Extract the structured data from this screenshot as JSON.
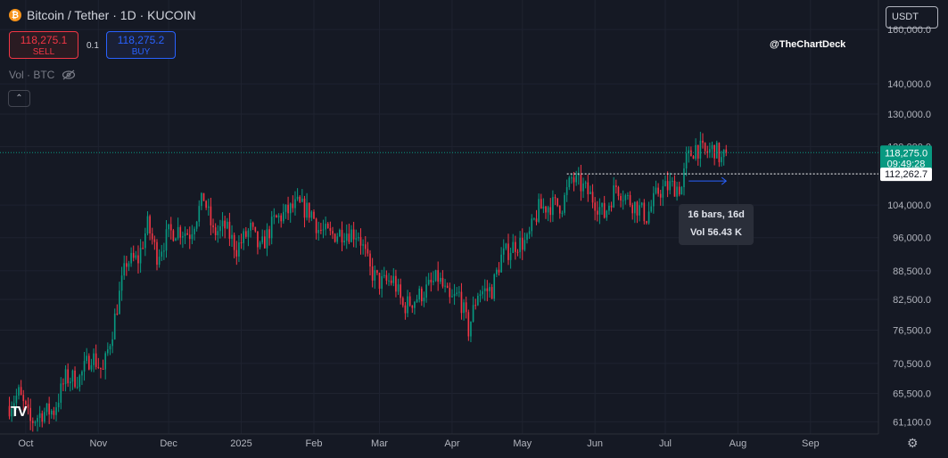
{
  "header": {
    "title": "Bitcoin / Tether · 1D · KUCOIN",
    "coin_icon": "bitcoin-icon",
    "sell_price": "118,275.1",
    "sell_label": "SELL",
    "buy_price": "118,275.2",
    "buy_label": "BUY",
    "quantity": "0.1",
    "volume_label": "Vol · BTC",
    "currency": "USDT"
  },
  "watermark": "@TheChartDeck",
  "logo": "TV",
  "colors": {
    "up": "#089981",
    "down": "#f23645",
    "background": "#151924",
    "grid": "#1f2330",
    "accent": "#2962ff"
  },
  "chart_data": {
    "type": "candlestick",
    "yscale": "log",
    "ylim": [
      59300,
      172000
    ],
    "xlim": [
      "2024-09-20",
      "2025-09-30"
    ],
    "grid": true,
    "y_ticks": [
      {
        "value": 160000,
        "label": "160,000.0"
      },
      {
        "value": 140000,
        "label": "140,000.0"
      },
      {
        "value": 130000,
        "label": "130,000.0"
      },
      {
        "value": 120000,
        "label": "120,000.0"
      },
      {
        "value": 104000,
        "label": "104,000.0"
      },
      {
        "value": 96000,
        "label": "96,000.0"
      },
      {
        "value": 88500,
        "label": "88,500.0"
      },
      {
        "value": 82500,
        "label": "82,500.0"
      },
      {
        "value": 76500,
        "label": "76,500.0"
      },
      {
        "value": 70500,
        "label": "70,500.0"
      },
      {
        "value": 65500,
        "label": "65,500.0"
      },
      {
        "value": 61100,
        "label": "61,100.0"
      }
    ],
    "x_ticks": [
      {
        "date": "2024-10-01",
        "label": "Oct"
      },
      {
        "date": "2024-11-01",
        "label": "Nov"
      },
      {
        "date": "2024-12-01",
        "label": "Dec"
      },
      {
        "date": "2025-01-01",
        "label": "2025"
      },
      {
        "date": "2025-02-01",
        "label": "Feb"
      },
      {
        "date": "2025-03-01",
        "label": "Mar"
      },
      {
        "date": "2025-04-01",
        "label": "Apr"
      },
      {
        "date": "2025-05-01",
        "label": "May"
      },
      {
        "date": "2025-06-01",
        "label": "Jun"
      },
      {
        "date": "2025-07-01",
        "label": "Jul"
      },
      {
        "date": "2025-08-01",
        "label": "Aug"
      },
      {
        "date": "2025-09-01",
        "label": "Sep"
      }
    ],
    "closes": [
      {
        "date": "2024-09-24",
        "close": 63500
      },
      {
        "date": "2024-09-28",
        "close": 65500
      },
      {
        "date": "2024-10-03",
        "close": 61000
      },
      {
        "date": "2024-10-08",
        "close": 62500
      },
      {
        "date": "2024-10-13",
        "close": 62800
      },
      {
        "date": "2024-10-18",
        "close": 68000
      },
      {
        "date": "2024-10-24",
        "close": 68000
      },
      {
        "date": "2024-10-29",
        "close": 72000
      },
      {
        "date": "2024-11-03",
        "close": 69000
      },
      {
        "date": "2024-11-07",
        "close": 76500
      },
      {
        "date": "2024-11-13",
        "close": 90500
      },
      {
        "date": "2024-11-18",
        "close": 91000
      },
      {
        "date": "2024-11-22",
        "close": 99000
      },
      {
        "date": "2024-11-26",
        "close": 92000
      },
      {
        "date": "2024-12-01",
        "close": 97000
      },
      {
        "date": "2024-12-05",
        "close": 98000
      },
      {
        "date": "2024-12-10",
        "close": 97000
      },
      {
        "date": "2024-12-16",
        "close": 106000
      },
      {
        "date": "2024-12-20",
        "close": 97000
      },
      {
        "date": "2024-12-25",
        "close": 98500
      },
      {
        "date": "2024-12-30",
        "close": 93500
      },
      {
        "date": "2025-01-05",
        "close": 98000
      },
      {
        "date": "2025-01-09",
        "close": 93000
      },
      {
        "date": "2025-01-15",
        "close": 100000
      },
      {
        "date": "2025-01-20",
        "close": 102000
      },
      {
        "date": "2025-01-25",
        "close": 104000
      },
      {
        "date": "2025-01-31",
        "close": 102000
      },
      {
        "date": "2025-02-03",
        "close": 98000
      },
      {
        "date": "2025-02-08",
        "close": 96500
      },
      {
        "date": "2025-02-14",
        "close": 97500
      },
      {
        "date": "2025-02-20",
        "close": 97000
      },
      {
        "date": "2025-02-25",
        "close": 88500
      },
      {
        "date": "2025-03-01",
        "close": 86000
      },
      {
        "date": "2025-03-03",
        "close": 86000
      },
      {
        "date": "2025-03-07",
        "close": 86500
      },
      {
        "date": "2025-03-11",
        "close": 81000
      },
      {
        "date": "2025-03-16",
        "close": 82500
      },
      {
        "date": "2025-03-21",
        "close": 84500
      },
      {
        "date": "2025-03-26",
        "close": 87000
      },
      {
        "date": "2025-03-31",
        "close": 82000
      },
      {
        "date": "2025-04-04",
        "close": 83500
      },
      {
        "date": "2025-04-08",
        "close": 76500
      },
      {
        "date": "2025-04-12",
        "close": 84000
      },
      {
        "date": "2025-04-18",
        "close": 84500
      },
      {
        "date": "2025-04-22",
        "close": 91500
      },
      {
        "date": "2025-04-28",
        "close": 94500
      },
      {
        "date": "2025-05-03",
        "close": 95000
      },
      {
        "date": "2025-05-08",
        "close": 103000
      },
      {
        "date": "2025-05-13",
        "close": 104000
      },
      {
        "date": "2025-05-18",
        "close": 104000
      },
      {
        "date": "2025-05-22",
        "close": 111000
      },
      {
        "date": "2025-05-27",
        "close": 108500
      },
      {
        "date": "2025-06-01",
        "close": 105000
      },
      {
        "date": "2025-06-05",
        "close": 101500
      },
      {
        "date": "2025-06-10",
        "close": 109000
      },
      {
        "date": "2025-06-15",
        "close": 105500
      },
      {
        "date": "2025-06-20",
        "close": 103000
      },
      {
        "date": "2025-06-23",
        "close": 101000
      },
      {
        "date": "2025-06-28",
        "close": 107500
      },
      {
        "date": "2025-07-03",
        "close": 109000
      },
      {
        "date": "2025-07-08",
        "close": 108500
      },
      {
        "date": "2025-07-10",
        "close": 116000
      },
      {
        "date": "2025-07-14",
        "close": 120000
      },
      {
        "date": "2025-07-18",
        "close": 118000
      },
      {
        "date": "2025-07-22",
        "close": 119500
      },
      {
        "date": "2025-07-25",
        "close": 116000
      },
      {
        "date": "2025-07-27",
        "close": 118275
      }
    ],
    "last_price": {
      "value": 118275,
      "label": "118,275.0",
      "countdown": "09:49:28"
    },
    "level_line": {
      "value": 112262.7,
      "label": "112,262.7"
    },
    "measure": {
      "bars_label": "16 bars, 16d",
      "volume_label": "Vol 56.43 K",
      "start": "2025-07-11",
      "end": "2025-07-27",
      "level": 112262.7
    }
  }
}
